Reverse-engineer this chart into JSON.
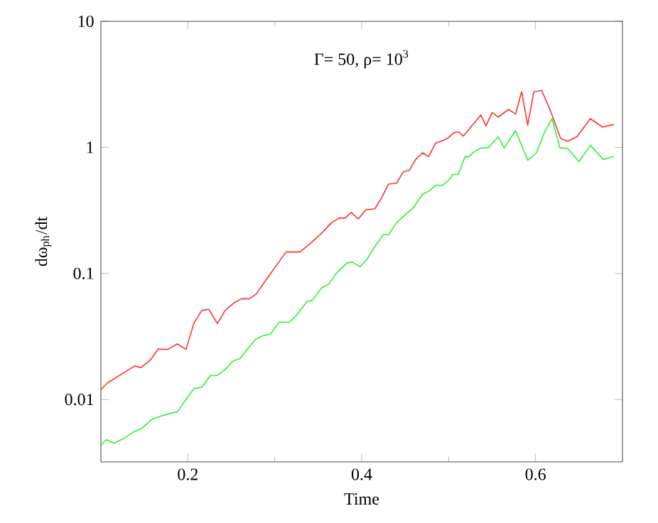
{
  "chart_data": {
    "type": "line",
    "xlabel": "Time",
    "ylabel": "dω$_{ph}$/dt",
    "annotations": [
      "Γ= 50, ρ= 10$^{3}$"
    ],
    "log": "y",
    "xlim": [
      0.1,
      0.7
    ],
    "ylim": [
      0.0032,
      10
    ],
    "xticks": [
      0.2,
      0.4,
      0.6
    ],
    "yticks": [
      0.01,
      0.1,
      1,
      10
    ],
    "marker": "none",
    "line_style": "solid",
    "series": [
      {
        "color": "#ff3030",
        "x": [
          0.1,
          0.108,
          0.139,
          0.146,
          0.157,
          0.166,
          0.177,
          0.188,
          0.198,
          0.207,
          0.216,
          0.224,
          0.234,
          0.243,
          0.254,
          0.262,
          0.271,
          0.279,
          0.29,
          0.302,
          0.313,
          0.329,
          0.343,
          0.355,
          0.365,
          0.374,
          0.381,
          0.388,
          0.396,
          0.405,
          0.415,
          0.422,
          0.431,
          0.44,
          0.448,
          0.455,
          0.462,
          0.47,
          0.477,
          0.485,
          0.493,
          0.498,
          0.507,
          0.512,
          0.517,
          0.528,
          0.537,
          0.543,
          0.55,
          0.557,
          0.569,
          0.577,
          0.584,
          0.591,
          0.598,
          0.607,
          0.617,
          0.629,
          0.637,
          0.648,
          0.663,
          0.677,
          0.69
        ],
        "values": [
          0.012,
          0.0136,
          0.0185,
          0.0179,
          0.0206,
          0.0251,
          0.025,
          0.0276,
          0.025,
          0.0404,
          0.0509,
          0.052,
          0.04,
          0.051,
          0.059,
          0.063,
          0.063,
          0.069,
          0.089,
          0.116,
          0.148,
          0.148,
          0.178,
          0.212,
          0.252,
          0.275,
          0.275,
          0.305,
          0.27,
          0.321,
          0.325,
          0.388,
          0.512,
          0.52,
          0.641,
          0.66,
          0.8,
          0.906,
          0.845,
          1.08,
          1.13,
          1.17,
          1.32,
          1.32,
          1.23,
          1.52,
          1.81,
          1.48,
          1.89,
          1.74,
          2.0,
          1.84,
          2.76,
          1.5,
          2.76,
          2.83,
          1.97,
          1.17,
          1.12,
          1.22,
          1.69,
          1.45,
          1.52
        ]
      },
      {
        "color": "#30f030",
        "x": [
          0.1,
          0.106,
          0.115,
          0.126,
          0.139,
          0.147,
          0.159,
          0.169,
          0.178,
          0.188,
          0.2,
          0.207,
          0.216,
          0.226,
          0.234,
          0.244,
          0.252,
          0.26,
          0.268,
          0.278,
          0.286,
          0.295,
          0.305,
          0.317,
          0.326,
          0.337,
          0.343,
          0.354,
          0.362,
          0.37,
          0.383,
          0.389,
          0.398,
          0.406,
          0.417,
          0.425,
          0.431,
          0.44,
          0.449,
          0.459,
          0.47,
          0.478,
          0.485,
          0.493,
          0.5,
          0.505,
          0.511,
          0.519,
          0.523,
          0.528,
          0.537,
          0.546,
          0.557,
          0.564,
          0.577,
          0.591,
          0.601,
          0.61,
          0.619,
          0.628,
          0.637,
          0.65,
          0.663,
          0.678,
          0.69
        ],
        "values": [
          0.00435,
          0.0048,
          0.0045,
          0.0049,
          0.0056,
          0.0059,
          0.007,
          0.0074,
          0.0077,
          0.008,
          0.0105,
          0.0122,
          0.0125,
          0.0155,
          0.0155,
          0.0176,
          0.0202,
          0.0211,
          0.0249,
          0.03,
          0.032,
          0.033,
          0.041,
          0.041,
          0.0475,
          0.06,
          0.061,
          0.077,
          0.082,
          0.099,
          0.121,
          0.123,
          0.113,
          0.129,
          0.171,
          0.203,
          0.203,
          0.252,
          0.288,
          0.33,
          0.424,
          0.453,
          0.5,
          0.5,
          0.548,
          0.61,
          0.61,
          0.845,
          0.84,
          0.91,
          0.986,
          1.0,
          1.21,
          0.99,
          1.36,
          0.79,
          0.906,
          1.3,
          1.69,
          0.994,
          0.98,
          0.77,
          1.04,
          0.8,
          0.85
        ]
      }
    ]
  }
}
